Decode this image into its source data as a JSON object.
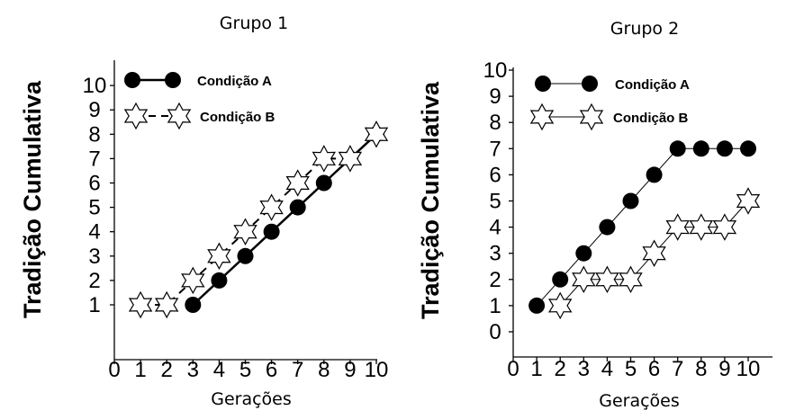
{
  "chart_data": [
    {
      "type": "line",
      "title": "Grupo 1",
      "xlabel": "Gerações",
      "ylabel": "Tradição Cumulativa",
      "xlim": [
        0,
        10
      ],
      "ylim": [
        1,
        10
      ],
      "xticks": [
        "0",
        "1",
        "2",
        "3",
        "4",
        "5",
        "6",
        "7",
        "8",
        "9",
        "10"
      ],
      "yticks": [
        "1",
        "2",
        "3",
        "4",
        "5",
        "6",
        "7",
        "8",
        "9",
        "10"
      ],
      "legend_position": "top-left",
      "grid": false,
      "series": [
        {
          "name": "Condição A",
          "marker": "filled-circle",
          "line_style": "solid",
          "color": "#000000",
          "points": [
            [
              3,
              1
            ],
            [
              4,
              2
            ],
            [
              5,
              3
            ],
            [
              6,
              4
            ],
            [
              7,
              5
            ],
            [
              8,
              6
            ],
            [
              9,
              7
            ],
            [
              10,
              8
            ]
          ]
        },
        {
          "name": "Condição B",
          "marker": "open-star",
          "line_style": "dashed",
          "color": "#000000",
          "points": [
            [
              1,
              1
            ],
            [
              2,
              1
            ],
            [
              3,
              2
            ],
            [
              4,
              3
            ],
            [
              5,
              4
            ],
            [
              6,
              5
            ],
            [
              7,
              6
            ],
            [
              8,
              7
            ],
            [
              9,
              7
            ],
            [
              10,
              8
            ]
          ]
        }
      ]
    },
    {
      "type": "line",
      "title": "Grupo 2",
      "xlabel": "Gerações",
      "ylabel": "Tradição Cumulativa",
      "xlim": [
        0,
        10
      ],
      "ylim": [
        0,
        10
      ],
      "xticks": [
        "0",
        "1",
        "2",
        "3",
        "4",
        "5",
        "6",
        "7",
        "8",
        "9",
        "10"
      ],
      "yticks": [
        "0",
        "1",
        "2",
        "3",
        "4",
        "5",
        "6",
        "7",
        "8",
        "9",
        "10"
      ],
      "legend_position": "top-left",
      "grid": false,
      "series": [
        {
          "name": "Condição A",
          "marker": "filled-circle",
          "line_style": "solid",
          "color": "#000000",
          "points": [
            [
              1,
              1
            ],
            [
              2,
              2
            ],
            [
              3,
              3
            ],
            [
              4,
              4
            ],
            [
              5,
              5
            ],
            [
              6,
              6
            ],
            [
              7,
              7
            ],
            [
              8,
              7
            ],
            [
              9,
              7
            ],
            [
              10,
              7
            ]
          ]
        },
        {
          "name": "Condição B",
          "marker": "open-star",
          "line_style": "solid",
          "color": "#000000",
          "points": [
            [
              2,
              1
            ],
            [
              3,
              2
            ],
            [
              4,
              2
            ],
            [
              5,
              2
            ],
            [
              6,
              3
            ],
            [
              7,
              4
            ],
            [
              8,
              4
            ],
            [
              9,
              4
            ],
            [
              10,
              5
            ]
          ]
        }
      ]
    }
  ]
}
